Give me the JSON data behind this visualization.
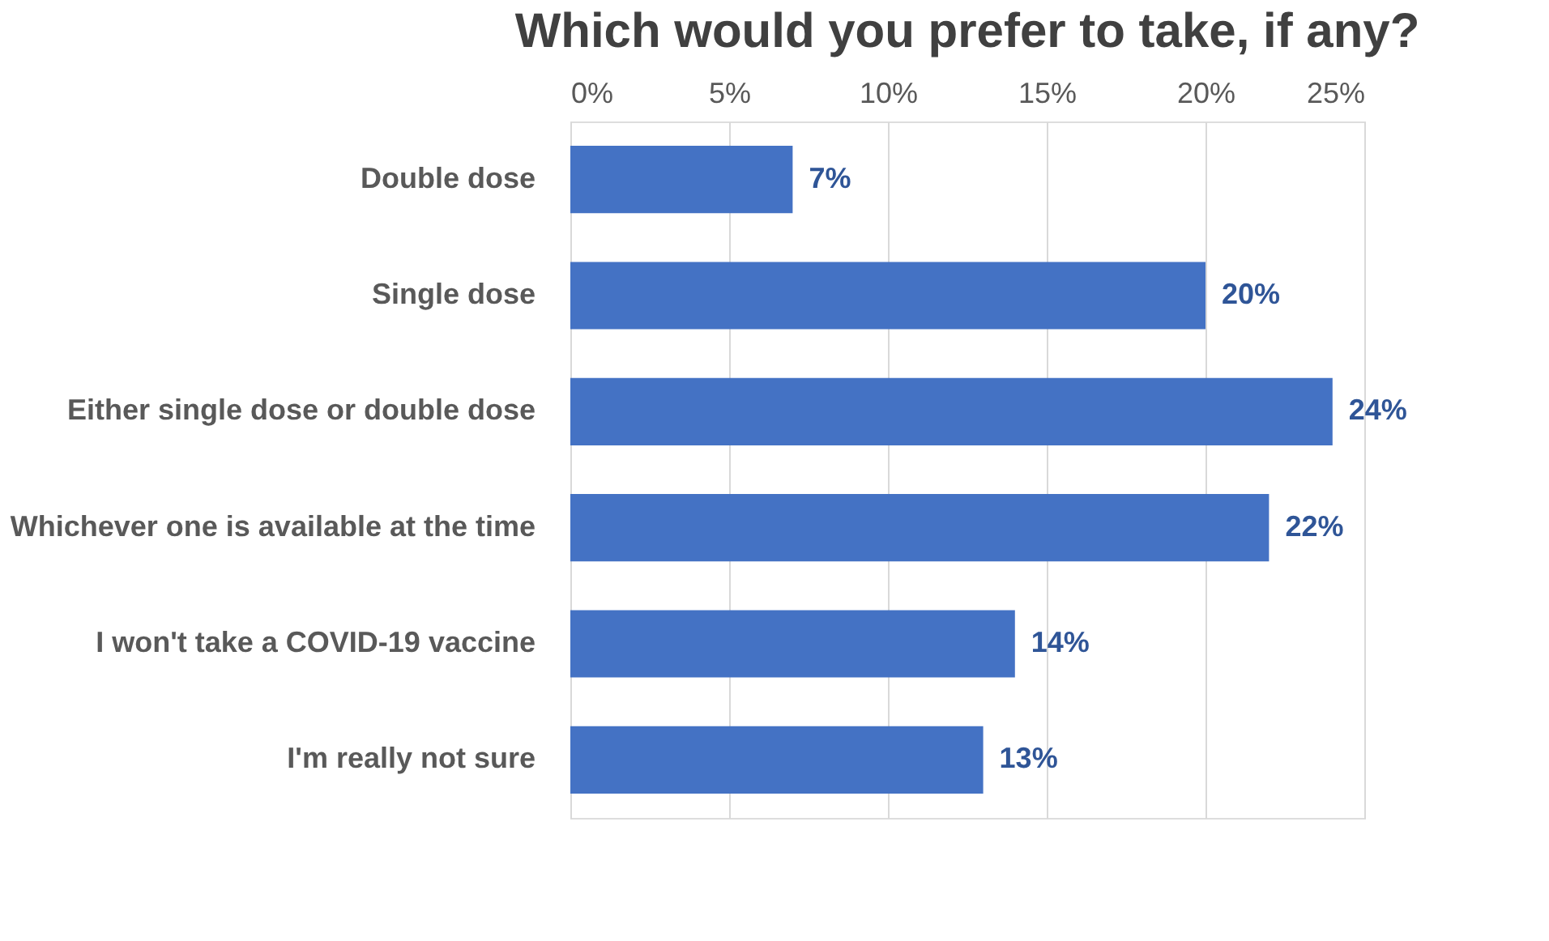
{
  "chart_data": {
    "type": "bar",
    "orientation": "horizontal",
    "title": "Which would you prefer to take, if any?",
    "categories": [
      "Double dose",
      "Single dose",
      "Either single dose or double dose",
      "Whichever one is available at the time",
      "I won't take a COVID-19 vaccine",
      "I'm really not sure"
    ],
    "values": [
      7,
      20,
      24,
      22,
      14,
      13
    ],
    "value_labels": [
      "7%",
      "20%",
      "24%",
      "22%",
      "14%",
      "13%"
    ],
    "color": "#4472c4",
    "xlim": [
      0,
      25
    ],
    "xticks": [
      {
        "value": 0,
        "label": "0%"
      },
      {
        "value": 5,
        "label": "5%"
      },
      {
        "value": 10,
        "label": "10%"
      },
      {
        "value": 15,
        "label": "15%"
      },
      {
        "value": 20,
        "label": "20%"
      },
      {
        "value": 25,
        "label": "25%"
      }
    ],
    "grid": "x"
  }
}
